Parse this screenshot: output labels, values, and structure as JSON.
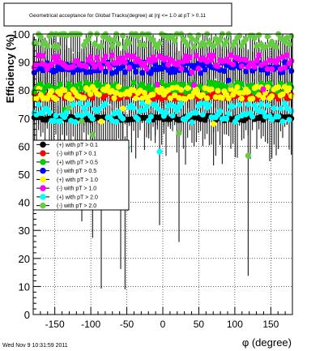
{
  "chart_data": {
    "type": "scatter",
    "title": "Geometrical acceptance for Global Tracks(degree) at |η| <= 1.0 at pT > 0.11",
    "xlabel": "φ (degree)",
    "ylabel": "Efficiency (%)",
    "xlim": [
      -180,
      180
    ],
    "ylim": [
      0,
      100
    ],
    "x_ticks": [
      "-150",
      "-100",
      "-50",
      "0",
      "50",
      "100",
      "150"
    ],
    "y_ticks": [
      "0",
      "10",
      "20",
      "30",
      "40",
      "50",
      "60",
      "70",
      "80",
      "90",
      "100"
    ],
    "grid": true,
    "legend_placement": "center-left",
    "timestamp": "Wed Nov  9 10:31:59 2011",
    "series": [
      {
        "name": "(+) with pT > 0.1",
        "color": "#000000",
        "mean": 70,
        "spread": 0.8,
        "errlo": 2,
        "errhi": 2,
        "drop_prob": 0.0,
        "drop_max": 0
      },
      {
        "name": "(-) with pT > 0.1",
        "color": "#ff0000",
        "mean": 78,
        "spread": 1.2,
        "errlo": 4,
        "errhi": 4,
        "drop_prob": 0.0,
        "drop_max": 0
      },
      {
        "name": "(+) with pT > 0.5",
        "color": "#00cc00",
        "mean": 81,
        "spread": 1.8,
        "errlo": 5,
        "errhi": 5,
        "drop_prob": 0.02,
        "drop_max": 10
      },
      {
        "name": "(-) with pT > 0.5",
        "color": "#0000ff",
        "mean": 88,
        "spread": 2.0,
        "errlo": 5,
        "errhi": 5,
        "drop_prob": 0.02,
        "drop_max": 10
      },
      {
        "name": "(+) with pT > 1.0",
        "color": "#ffff00",
        "mean": 79,
        "spread": 2.2,
        "errlo": 6,
        "errhi": 6,
        "drop_prob": 0.03,
        "drop_max": 12
      },
      {
        "name": "(-) with pT > 1.0",
        "color": "#ff00ff",
        "mean": 90,
        "spread": 2.5,
        "errlo": 7,
        "errhi": 7,
        "drop_prob": 0.03,
        "drop_max": 12
      },
      {
        "name": "(+) with pT > 2.0",
        "color": "#00ffff",
        "mean": 72,
        "spread": 3.5,
        "errlo": 12,
        "errhi": 10,
        "drop_prob": 0.07,
        "drop_max": 30
      },
      {
        "name": "(-) with pT > 2.0",
        "color": "#66cc44",
        "mean": 98,
        "spread": 3.0,
        "errlo": 14,
        "errhi": 2,
        "drop_prob": 0.08,
        "drop_max": 45
      }
    ]
  }
}
